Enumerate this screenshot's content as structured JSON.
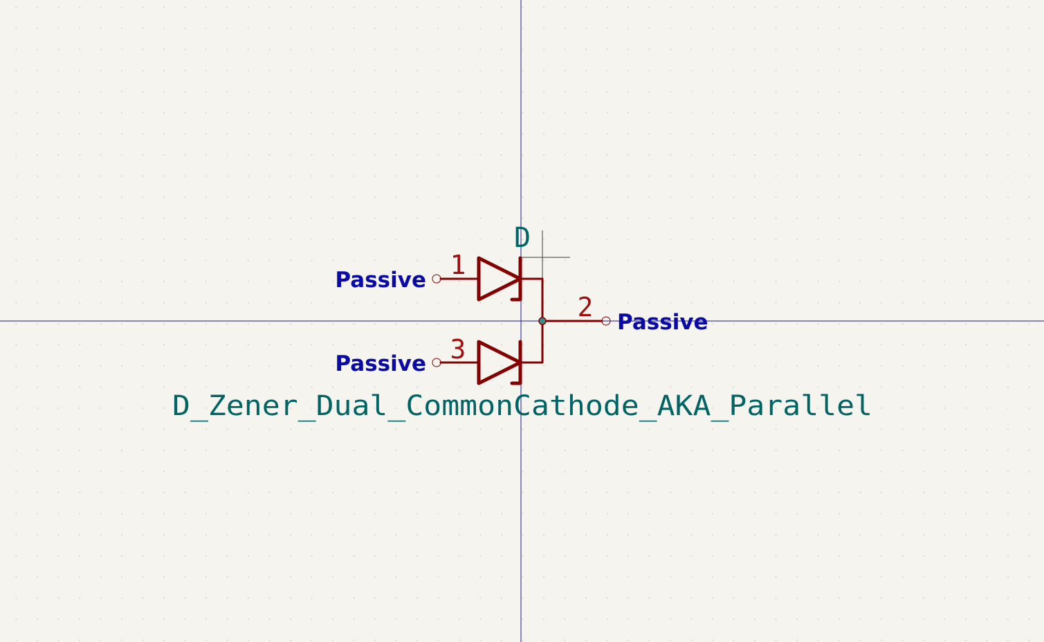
{
  "symbol": {
    "reference": "D",
    "value": "D_Zener_Dual_CommonCathode_AKA_Parallel",
    "pins": [
      {
        "number": "1",
        "type": "Passive"
      },
      {
        "number": "2",
        "type": "Passive"
      },
      {
        "number": "3",
        "type": "Passive"
      }
    ]
  },
  "colors": {
    "background": "#f5f4ef",
    "grid_dot": "#c9c9c0",
    "axis": "#1a1a8c",
    "symbol_body": "#840000",
    "pin_number": "#a01010",
    "field_text": "#006464",
    "pin_type_text": "#0a0aa8",
    "cursor": "#3a3a3a",
    "junction": "#3c8c8c"
  }
}
